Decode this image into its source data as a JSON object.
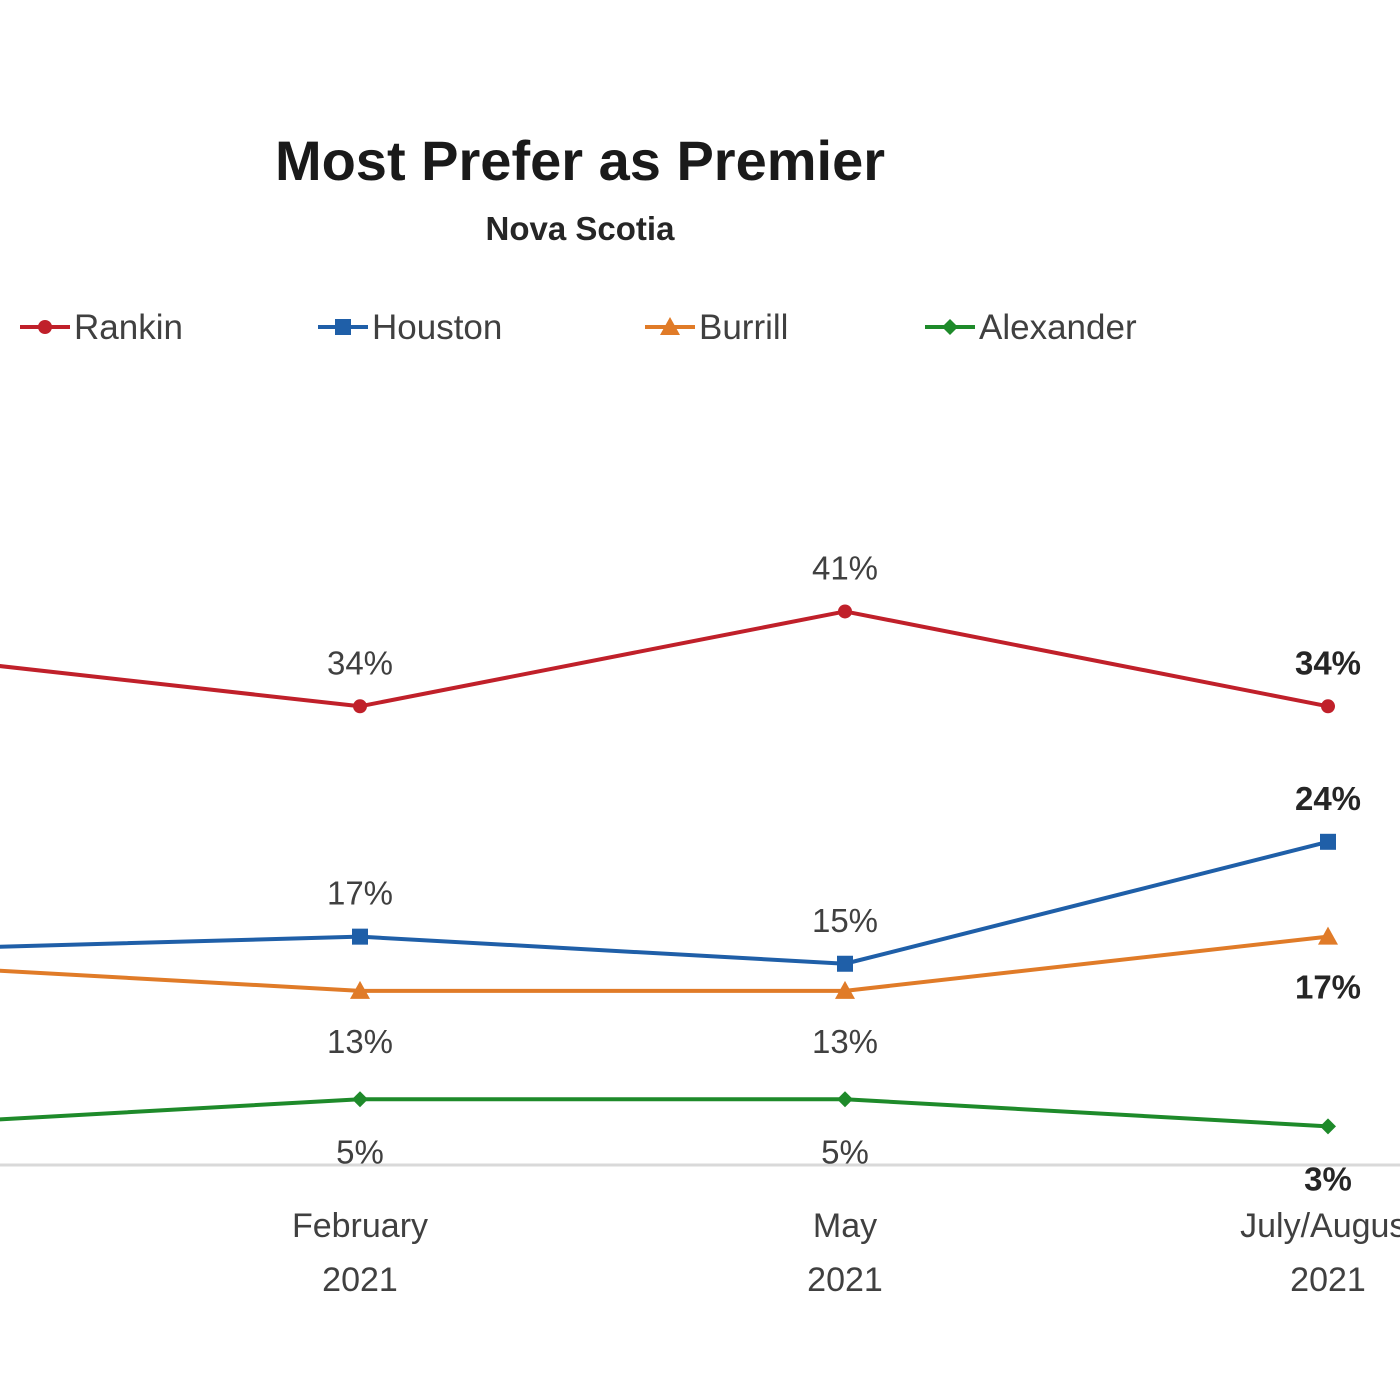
{
  "chart_data": {
    "type": "line",
    "title": "Most Prefer as Premier",
    "subtitle": "Nova Scotia",
    "categories": [
      [
        "",
        ""
      ],
      [
        "February",
        "2021"
      ],
      [
        "May",
        "2021"
      ],
      [
        "July/August",
        "2021"
      ]
    ],
    "ylim": [
      0,
      45
    ],
    "grid": false,
    "legend_position": "top",
    "series": [
      {
        "name": "Rankin",
        "color": "#c0202a",
        "marker": "circle",
        "values": [
          null,
          34,
          41,
          34
        ],
        "labels": [
          "",
          "34%",
          "41%",
          "34%"
        ],
        "label_placement": [
          "",
          "above",
          "above",
          "above"
        ]
      },
      {
        "name": "Houston",
        "color": "#1f5fa8",
        "marker": "square",
        "values": [
          null,
          17,
          15,
          24
        ],
        "labels": [
          "",
          "17%",
          "15%",
          "24%"
        ],
        "label_placement": [
          "",
          "above",
          "above",
          "above"
        ]
      },
      {
        "name": "Burrill",
        "color": "#e07b28",
        "marker": "triangle",
        "values": [
          null,
          13,
          13,
          17
        ],
        "labels": [
          "",
          "13%",
          "13%",
          "17%"
        ],
        "label_placement": [
          "",
          "below",
          "below",
          "below"
        ]
      },
      {
        "name": "Alexander",
        "color": "#1e8a2a",
        "marker": "diamond",
        "values": [
          null,
          5,
          5,
          3
        ],
        "labels": [
          "",
          "5%",
          "5%",
          "3%"
        ],
        "label_placement": [
          "",
          "below",
          "below",
          "below"
        ]
      }
    ],
    "partial_left_values": {
      "Rankin": 38,
      "Houston": 16,
      "Burrill": 15,
      "Alexander": 3
    },
    "bold_last_labels": true
  }
}
